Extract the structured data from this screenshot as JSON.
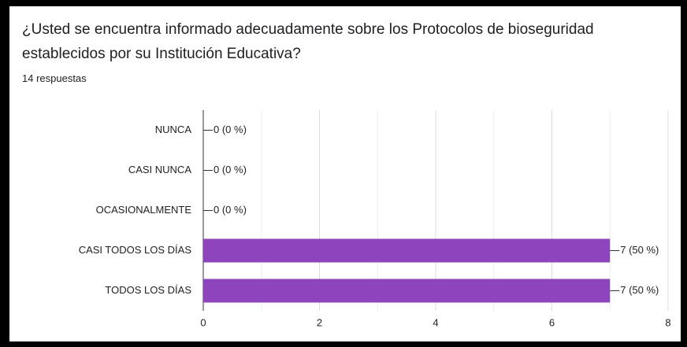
{
  "chart_data": {
    "type": "bar",
    "orientation": "horizontal",
    "title": "¿Usted se encuentra informado adecuadamente sobre los Protocolos de bioseguridad establecidos por su Institución Educativa?",
    "subtitle": "14 respuestas",
    "categories": [
      "NUNCA",
      "CASI NUNCA",
      "OCASIONALMENTE",
      "CASI TODOS LOS DÍAS",
      "TODOS LOS DÍAS"
    ],
    "values": [
      0,
      0,
      0,
      7,
      7
    ],
    "value_labels": [
      "0 (0 %)",
      "0 (0 %)",
      "0 (0 %)",
      "7 (50 %)",
      "7 (50 %)"
    ],
    "color": "#8e44bd",
    "xlim": [
      0,
      8
    ],
    "xticks": [
      0,
      2,
      4,
      6,
      8
    ],
    "x_minor_ticks": [
      1,
      3,
      5,
      7
    ],
    "grid": true
  }
}
